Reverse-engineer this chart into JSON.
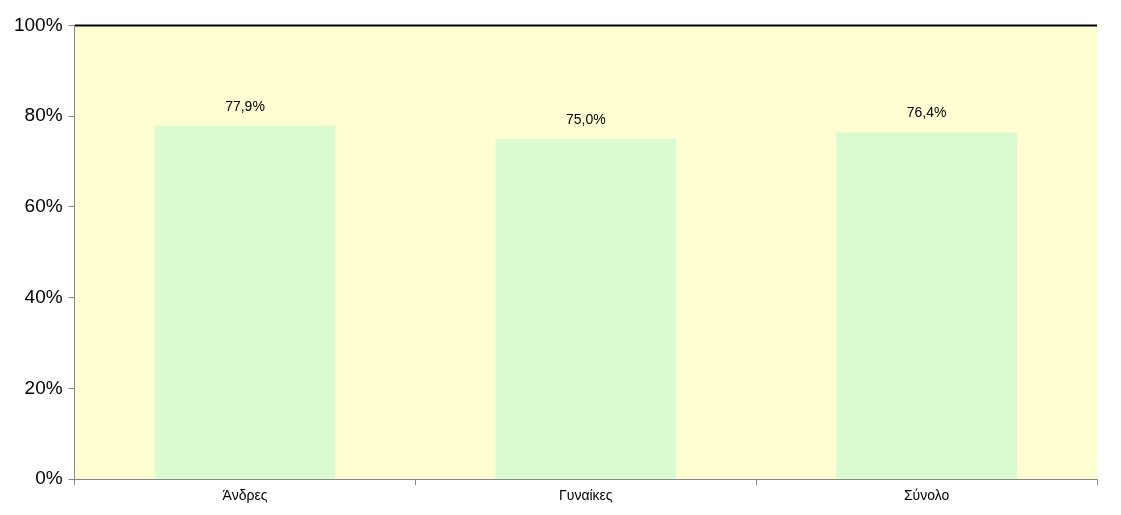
{
  "chart_data": {
    "type": "bar",
    "categories": [
      "Άνδρες",
      "Γυναίκες",
      "Σύνολο"
    ],
    "values": [
      77.9,
      75.0,
      76.4
    ],
    "value_labels": [
      "77,9%",
      "75,0%",
      "76,4%"
    ],
    "color": "#d8fcd0",
    "ylim": [
      0,
      100
    ],
    "yticks": [
      {
        "value": 0,
        "label": "0%"
      },
      {
        "value": 20,
        "label": "20%"
      },
      {
        "value": 40,
        "label": "40%"
      },
      {
        "value": 60,
        "label": "60%"
      },
      {
        "value": 80,
        "label": "80%"
      },
      {
        "value": 100,
        "label": "100%"
      }
    ],
    "grid": false,
    "legend": false
  }
}
